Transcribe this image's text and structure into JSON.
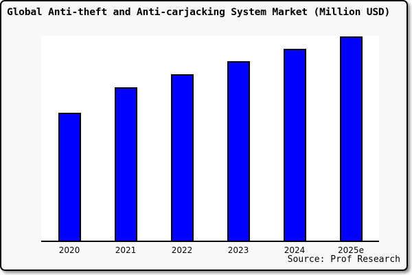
{
  "figure": {
    "background_color": "#f8f8f8",
    "plot_background_color": "#ffffff",
    "border_color": "#000000",
    "text_color": "#000000"
  },
  "header": {
    "title": "Global Anti-theft and Anti-carjacking System Market (Million USD)"
  },
  "footer": {
    "source": "Source: Prof Research"
  },
  "chart_data": {
    "type": "bar",
    "title": "Global Anti-theft and Anti-carjacking System Market (Million USD)",
    "categories": [
      "2020",
      "2021",
      "2022",
      "2023",
      "2024",
      "2025e"
    ],
    "values": [
      62.3,
      75.0,
      81.3,
      87.7,
      93.7,
      99.7
    ],
    "value_note": "No numeric y-axis or data labels are shown; values are bar heights as percent of the plot height (tallest bar 2025e reaches the plot top).",
    "xlabel": "",
    "ylabel": "",
    "ylim": [
      0,
      100
    ],
    "grid": false,
    "legend": false,
    "bar_color": "#0000ff",
    "bar_border_color": "#000000",
    "source": "Source: Prof Research"
  }
}
